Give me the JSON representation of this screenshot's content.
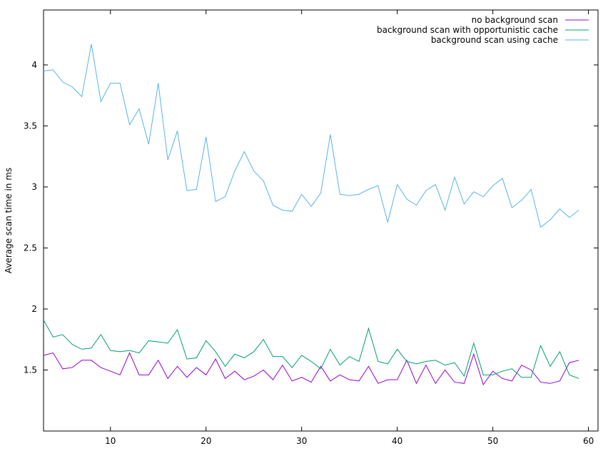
{
  "chart_data": {
    "type": "line",
    "title": "",
    "xlabel": "",
    "ylabel": "Average scan time in ms",
    "xlim": [
      3,
      61
    ],
    "ylim": [
      1.0,
      4.45
    ],
    "xticks": [
      10,
      20,
      30,
      40,
      50,
      60
    ],
    "yticks": [
      1.5,
      2,
      2.5,
      3,
      3.5,
      4
    ],
    "xtick_labels": [
      "10",
      "20",
      "30",
      "40",
      "50",
      "60"
    ],
    "ytick_labels": [
      "1.5",
      "2",
      "2.5",
      "3",
      "3.5",
      "4"
    ],
    "grid": false,
    "legend_position": "top-right",
    "x": [
      3,
      4,
      5,
      6,
      7,
      8,
      9,
      10,
      11,
      12,
      13,
      14,
      15,
      16,
      17,
      18,
      19,
      20,
      21,
      22,
      23,
      24,
      25,
      26,
      27,
      28,
      29,
      30,
      31,
      32,
      33,
      34,
      35,
      36,
      37,
      38,
      39,
      40,
      41,
      42,
      43,
      44,
      45,
      46,
      47,
      48,
      49,
      50,
      51,
      52,
      53,
      54,
      55,
      56,
      57,
      58,
      59
    ],
    "series": [
      {
        "name": "no background scan",
        "color": "#9400d3",
        "values": [
          1.62,
          1.64,
          1.51,
          1.52,
          1.58,
          1.58,
          1.52,
          1.49,
          1.46,
          1.64,
          1.46,
          1.46,
          1.58,
          1.43,
          1.53,
          1.44,
          1.52,
          1.46,
          1.59,
          1.43,
          1.49,
          1.42,
          1.45,
          1.5,
          1.42,
          1.54,
          1.41,
          1.44,
          1.4,
          1.53,
          1.41,
          1.46,
          1.42,
          1.41,
          1.53,
          1.39,
          1.42,
          1.42,
          1.58,
          1.39,
          1.54,
          1.39,
          1.5,
          1.4,
          1.39,
          1.63,
          1.38,
          1.49,
          1.43,
          1.41,
          1.54,
          1.5,
          1.4,
          1.39,
          1.41,
          1.56,
          1.58
        ]
      },
      {
        "name": "background scan with opportunistic cache",
        "color": "#009e73",
        "values": [
          1.91,
          1.77,
          1.79,
          1.71,
          1.67,
          1.68,
          1.79,
          1.66,
          1.65,
          1.66,
          1.64,
          1.74,
          1.73,
          1.72,
          1.83,
          1.59,
          1.6,
          1.74,
          1.65,
          1.53,
          1.63,
          1.6,
          1.65,
          1.75,
          1.61,
          1.61,
          1.52,
          1.62,
          1.57,
          1.51,
          1.67,
          1.54,
          1.61,
          1.57,
          1.84,
          1.57,
          1.55,
          1.67,
          1.57,
          1.55,
          1.57,
          1.58,
          1.54,
          1.56,
          1.45,
          1.72,
          1.46,
          1.46,
          1.49,
          1.51,
          1.44,
          1.44,
          1.7,
          1.53,
          1.65,
          1.46,
          1.43
        ]
      },
      {
        "name": "background scan using cache",
        "color": "#56b4e9",
        "values": [
          3.95,
          3.96,
          3.86,
          3.82,
          3.74,
          4.17,
          3.7,
          3.85,
          3.85,
          3.51,
          3.64,
          3.35,
          3.85,
          3.22,
          3.46,
          2.97,
          2.98,
          3.41,
          2.88,
          2.92,
          3.13,
          3.29,
          3.13,
          3.05,
          2.85,
          2.81,
          2.8,
          2.94,
          2.84,
          2.95,
          3.43,
          2.94,
          2.93,
          2.94,
          2.98,
          3.01,
          2.71,
          3.02,
          2.9,
          2.85,
          2.97,
          3.02,
          2.81,
          3.08,
          2.86,
          2.96,
          2.92,
          3.01,
          3.07,
          2.83,
          2.89,
          2.98,
          2.67,
          2.73,
          2.82,
          2.75,
          2.81
        ]
      }
    ]
  }
}
